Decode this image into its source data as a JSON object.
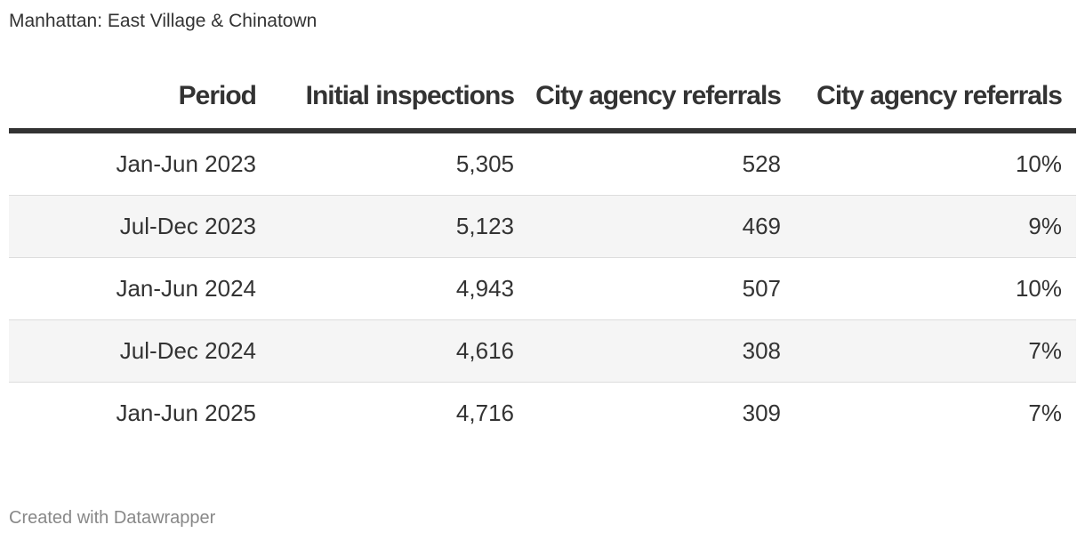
{
  "title": "Manhattan: East Village & Chinatown",
  "footer": "Created with Datawrapper",
  "chart_data": {
    "type": "table",
    "title": "Manhattan: East Village & Chinatown",
    "columns": [
      "Period",
      "Initial inspections",
      "City agency referrals",
      "City agency referrals"
    ],
    "rows": [
      [
        "Jan-Jun 2023",
        "5,305",
        "528",
        "10%"
      ],
      [
        "Jul-Dec 2023",
        "5,123",
        "469",
        "9%"
      ],
      [
        "Jan-Jun 2024",
        "4,943",
        "507",
        "10%"
      ],
      [
        "Jul-Dec 2024",
        "4,616",
        "308",
        "7%"
      ],
      [
        "Jan-Jun 2025",
        "4,716",
        "309",
        "7%"
      ]
    ]
  }
}
